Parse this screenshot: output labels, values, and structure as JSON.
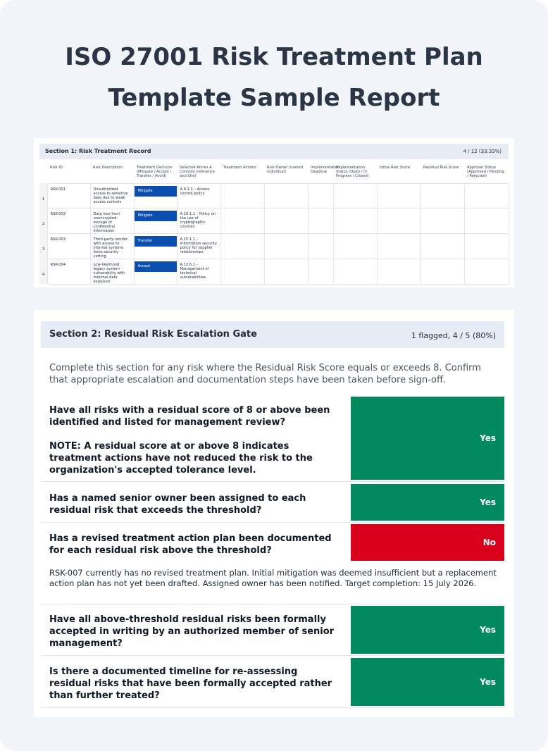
{
  "title": {
    "line1": "ISO 27001 Risk Treatment Plan",
    "line2": "Template Sample Report"
  },
  "section1": {
    "title": "Section 1: Risk Treatment Record",
    "count": "4 / 12 (33.33%)",
    "columns": [
      "Risk ID",
      "Risk Description",
      "Treatment Decision (Mitigate / Accept / Transfer / Avoid)",
      "Selected Annex A Controls (reference and title)",
      "Treatment Actions",
      "Risk Owner (named individual)",
      "Implementation Deadline",
      "Implementation Status (Open / In Progress / Closed)",
      "Initial Risk Score",
      "Residual Risk Score",
      "Approval Status (Approved / Pending / Rejected)"
    ],
    "rows": [
      {
        "n": "1",
        "id": "RSK-001",
        "desc": "Unauthorized access to sensitive data due to weak access controls",
        "decision": "Mitigate",
        "controls": "A.9.1.1 – Access control policy"
      },
      {
        "n": "2",
        "id": "RSK-002",
        "desc": "Data loss from unencrypted storage of confidential information",
        "decision": "Mitigate",
        "controls": "A.10.1.1 – Policy on the use of cryptographic controls"
      },
      {
        "n": "3",
        "id": "RSK-003",
        "desc": "Third-party vendor with access to internal systems lacks security vetting",
        "decision": "Transfer",
        "controls": "A.15.1.1 – Information security policy for supplier relationships"
      },
      {
        "n": "4",
        "id": "RSK-004",
        "desc": "Low-likelihood legacy system vulnerability with minimal data exposure",
        "decision": "Accept",
        "controls": "A.12.6.1 – Management of technical vulnerabilities"
      }
    ]
  },
  "section2": {
    "title": "Section 2: Residual Risk Escalation Gate",
    "count": "1 flagged, 4 / 5 (80%)",
    "intro": "Complete this section for any risk where the Residual Risk Score equals or exceeds 8. Confirm that appropriate escalation and documentation steps have been taken before sign-off.",
    "questions": [
      {
        "text": "Have all risks with a residual score of 8 or above been identified and listed for management review?",
        "extra": "NOTE: A residual score at or above 8 indicates treatment actions have not reduced the risk to the organization's accepted tolerance level.",
        "answer": "Yes"
      },
      {
        "text": "Has a named senior owner been assigned to each residual risk that exceeds the threshold?",
        "answer": "Yes"
      },
      {
        "text": "Has a revised treatment action plan been documented for each residual risk above the threshold?",
        "answer": "No",
        "note": "RSK-007 currently has no revised treatment plan. Initial mitigation was deemed insufficient but a replacement action plan has not yet been drafted. Assigned owner has been notified. Target completion: 15 July 2026."
      },
      {
        "text": "Have all above-threshold residual risks been formally accepted in writing by an authorized member of senior management?",
        "answer": "Yes"
      },
      {
        "text": "Is there a documented timeline for re-assessing residual risks that have been formally accepted rather than further treated?",
        "answer": "Yes"
      }
    ]
  },
  "colors": {
    "yes": "#008a5e",
    "no": "#d9001b",
    "chip": "#0a4fb0"
  }
}
